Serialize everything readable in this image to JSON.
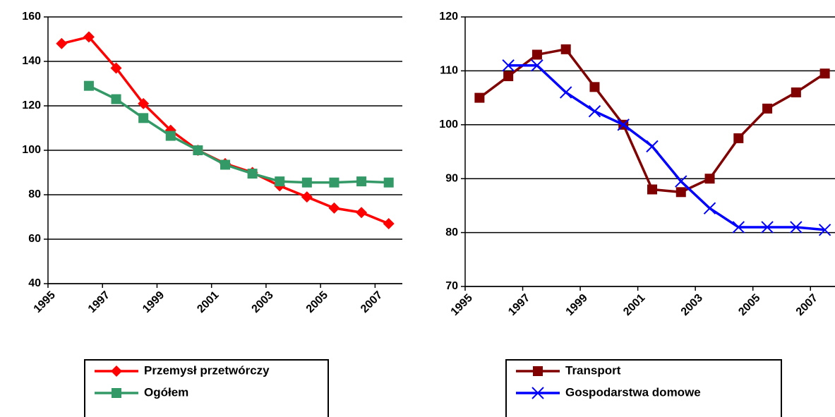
{
  "chart_data": [
    {
      "type": "line",
      "categories": [
        "1995",
        null,
        "1997",
        null,
        "1999",
        null,
        "2001",
        null,
        "2003",
        null,
        "2005",
        null,
        "2007"
      ],
      "series": [
        {
          "name": "Przemysł przetwórczy",
          "color": "#ff0000",
          "marker": "diamond",
          "values": [
            148,
            151,
            137,
            121,
            109,
            100,
            94,
            90,
            84,
            79,
            74,
            72,
            67
          ]
        },
        {
          "name": "Ogółem",
          "color": "#339966",
          "marker": "square",
          "values": [
            null,
            129,
            123,
            114.5,
            106.5,
            100,
            93.5,
            89.5,
            86,
            85.5,
            85.5,
            86,
            85.5
          ]
        }
      ],
      "ylim": [
        40,
        160
      ],
      "yticks": [
        40,
        60,
        80,
        100,
        120,
        140,
        160
      ],
      "grid": true,
      "legend": "bottom"
    },
    {
      "type": "line",
      "categories": [
        "1995",
        null,
        "1997",
        null,
        "1999",
        null,
        "2001",
        null,
        "2003",
        null,
        "2005",
        null,
        "2007"
      ],
      "series": [
        {
          "name": "Transport",
          "color": "#800000",
          "marker": "square",
          "values": [
            105,
            109,
            113,
            114,
            107,
            100,
            88,
            87.5,
            90,
            97.5,
            103,
            106,
            109.5
          ]
        },
        {
          "name": "Gospodarstwa domowe",
          "color": "#0000ff",
          "marker": "x",
          "values": [
            null,
            111,
            111,
            106,
            102.5,
            100,
            96,
            89.5,
            84.5,
            81,
            81,
            81,
            80.5
          ]
        }
      ],
      "ylim": [
        70,
        120
      ],
      "yticks": [
        70,
        80,
        90,
        100,
        110,
        120
      ],
      "grid": true,
      "legend": "bottom"
    }
  ]
}
